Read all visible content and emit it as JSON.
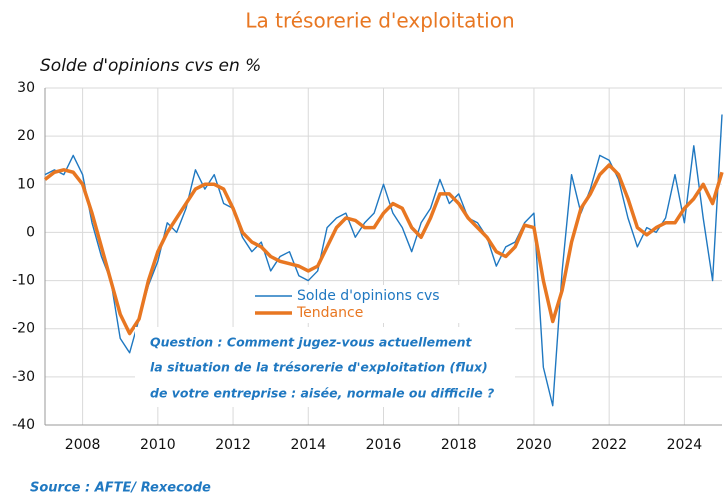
{
  "chart_data": {
    "type": "line",
    "title": "La trésorerie d'exploitation",
    "subtitle": "Solde d'opinions cvs en %",
    "annotation": [
      "Question : Comment jugez-vous actuellement",
      "la situation de la trésorerie d'exploitation (flux)",
      "de votre entreprise : aisée, normale ou difficile ?"
    ],
    "source": "Source : AFTE/ Rexecode",
    "x": [
      2007,
      2007.25,
      2007.5,
      2007.75,
      2008,
      2008.25,
      2008.5,
      2008.75,
      2009,
      2009.25,
      2009.5,
      2009.75,
      2010,
      2010.25,
      2010.5,
      2010.75,
      2011,
      2011.25,
      2011.5,
      2011.75,
      2012,
      2012.25,
      2012.5,
      2012.75,
      2013,
      2013.25,
      2013.5,
      2013.75,
      2014,
      2014.25,
      2014.5,
      2014.75,
      2015,
      2015.25,
      2015.5,
      2015.75,
      2016,
      2016.25,
      2016.5,
      2016.75,
      2017,
      2017.25,
      2017.5,
      2017.75,
      2018,
      2018.25,
      2018.5,
      2018.75,
      2019,
      2019.25,
      2019.5,
      2019.75,
      2020,
      2020.25,
      2020.5,
      2020.75,
      2021,
      2021.25,
      2021.5,
      2021.75,
      2022,
      2022.25,
      2022.5,
      2022.75,
      2023,
      2023.25,
      2023.5,
      2023.75,
      2024,
      2024.25,
      2024.5,
      2024.75,
      2025
    ],
    "series": [
      {
        "name": "Solde d'opinions cvs",
        "color": "#1f78c1",
        "width": 1.4,
        "values": [
          12,
          13,
          12,
          16,
          12,
          2,
          -5,
          -10,
          -22,
          -25,
          -18,
          -11,
          -6,
          2,
          0,
          5,
          13,
          9,
          12,
          6,
          5,
          -1,
          -4,
          -2,
          -8,
          -5,
          -4,
          -9,
          -10,
          -8,
          1,
          3,
          4,
          -1,
          2,
          4,
          10,
          4,
          1,
          -4,
          2,
          5,
          11,
          6,
          8,
          3,
          2,
          -1,
          -7,
          -3,
          -2,
          2,
          4,
          -28,
          -36,
          -8,
          12,
          4,
          9,
          16,
          15,
          11,
          3,
          -3,
          1,
          0,
          3,
          12,
          2,
          18,
          3,
          -10,
          24.5
        ]
      },
      {
        "name": "Tendance",
        "color": "#e87722",
        "width": 3.5,
        "values": [
          11,
          12.5,
          13,
          12.5,
          10,
          4,
          -3,
          -10,
          -17,
          -21,
          -18,
          -10,
          -4,
          0,
          3,
          6,
          9,
          10,
          10,
          9,
          5,
          0,
          -2,
          -3,
          -5,
          -6,
          -6.5,
          -7,
          -8,
          -7,
          -3,
          1,
          3,
          2.5,
          1,
          1,
          4,
          6,
          5,
          1,
          -1,
          3,
          8,
          8,
          6,
          3,
          1,
          -1,
          -4,
          -5,
          -3,
          1.5,
          1,
          -10,
          -18.5,
          -12,
          -2,
          5,
          8,
          12,
          14,
          12,
          7,
          1,
          -0.5,
          1,
          2,
          2,
          5,
          7,
          10,
          6,
          12.5
        ]
      }
    ],
    "xlim": [
      2007,
      2025
    ],
    "xticks": [
      2008,
      2010,
      2012,
      2014,
      2016,
      2018,
      2020,
      2022,
      2024
    ],
    "ylim": [
      -40,
      30
    ],
    "yticks": [
      -40,
      -30,
      -20,
      -10,
      0,
      10,
      20,
      30
    ],
    "grid": true
  }
}
